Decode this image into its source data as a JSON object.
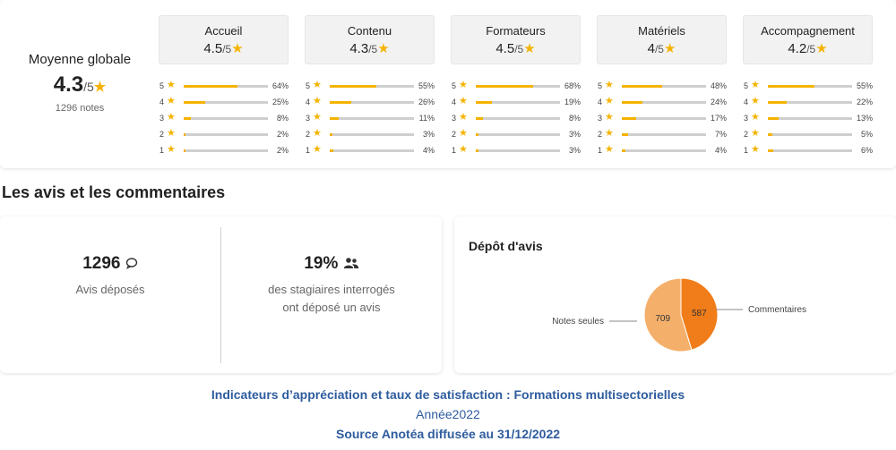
{
  "overall": {
    "label": "Moyenne globale",
    "score": "4.3",
    "max": "/5",
    "count": "1296 notes"
  },
  "categories": [
    {
      "name": "Accueil",
      "score": "4.5",
      "max": "/5",
      "dist": [
        {
          "level": "5",
          "pct": "64%",
          "fill": 0.64
        },
        {
          "level": "4",
          "pct": "25%",
          "fill": 0.25
        },
        {
          "level": "3",
          "pct": "8%",
          "fill": 0.08
        },
        {
          "level": "2",
          "pct": "2%",
          "fill": 0.02
        },
        {
          "level": "1",
          "pct": "2%",
          "fill": 0.02
        }
      ]
    },
    {
      "name": "Contenu",
      "score": "4.3",
      "max": "/5",
      "dist": [
        {
          "level": "5",
          "pct": "55%",
          "fill": 0.55
        },
        {
          "level": "4",
          "pct": "26%",
          "fill": 0.26
        },
        {
          "level": "3",
          "pct": "11%",
          "fill": 0.11
        },
        {
          "level": "2",
          "pct": "3%",
          "fill": 0.03
        },
        {
          "level": "1",
          "pct": "4%",
          "fill": 0.04
        }
      ]
    },
    {
      "name": "Formateurs",
      "score": "4.5",
      "max": "/5",
      "dist": [
        {
          "level": "5",
          "pct": "68%",
          "fill": 0.68
        },
        {
          "level": "4",
          "pct": "19%",
          "fill": 0.19
        },
        {
          "level": "3",
          "pct": "8%",
          "fill": 0.08
        },
        {
          "level": "2",
          "pct": "3%",
          "fill": 0.03
        },
        {
          "level": "1",
          "pct": "3%",
          "fill": 0.03
        }
      ]
    },
    {
      "name": "Matériels",
      "score": "4",
      "max": "/5",
      "dist": [
        {
          "level": "5",
          "pct": "48%",
          "fill": 0.48
        },
        {
          "level": "4",
          "pct": "24%",
          "fill": 0.24
        },
        {
          "level": "3",
          "pct": "17%",
          "fill": 0.17
        },
        {
          "level": "2",
          "pct": "7%",
          "fill": 0.07
        },
        {
          "level": "1",
          "pct": "4%",
          "fill": 0.04
        }
      ]
    },
    {
      "name": "Accompagnement",
      "score": "4.2",
      "max": "/5",
      "dist": [
        {
          "level": "5",
          "pct": "55%",
          "fill": 0.55
        },
        {
          "level": "4",
          "pct": "22%",
          "fill": 0.22
        },
        {
          "level": "3",
          "pct": "13%",
          "fill": 0.13
        },
        {
          "level": "2",
          "pct": "5%",
          "fill": 0.05
        },
        {
          "level": "1",
          "pct": "6%",
          "fill": 0.06
        }
      ]
    }
  ],
  "section_title": "Les avis et les commentaires",
  "stats": {
    "avis": {
      "value": "1296",
      "label": "Avis déposés",
      "icon": "comment-icon"
    },
    "rate": {
      "value": "19%",
      "label_line1": "des stagiaires interrogés",
      "label_line2": "ont déposé un avis",
      "icon": "users-icon"
    }
  },
  "depot": {
    "title": "Dépôt d'avis",
    "chart_data": {
      "type": "pie",
      "title": "Dépôt d'avis",
      "slices": [
        {
          "label": "Notes seules",
          "value": 709,
          "color": "#f4b06b"
        },
        {
          "label": "Commentaires",
          "value": 587,
          "color": "#f07d1a"
        }
      ]
    }
  },
  "footer": {
    "line1": "Indicateurs d’appréciation et taux de satisfaction :  Formations multisectorielles",
    "line2": "Année2022",
    "line3": "Source Anotéa diffusée au 31/12/2022"
  },
  "colors": {
    "star": "#f5b301",
    "footer_blue": "#2e5c9e"
  }
}
